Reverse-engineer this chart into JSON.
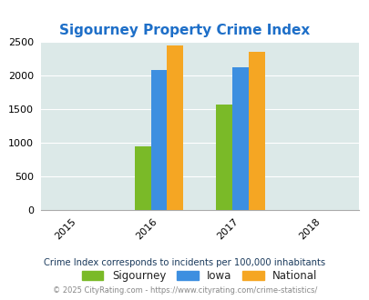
{
  "title": "Sigourney Property Crime Index",
  "title_color": "#1e6fc8",
  "years": [
    2015,
    2016,
    2017,
    2018
  ],
  "bar_years": [
    2016,
    2017
  ],
  "sigourney": [
    950,
    1570
  ],
  "iowa": [
    2080,
    2120
  ],
  "national": [
    2450,
    2360
  ],
  "sigourney_color": "#7aba28",
  "iowa_color": "#3d8fe0",
  "national_color": "#f5a623",
  "ylim": [
    0,
    2500
  ],
  "yticks": [
    0,
    500,
    1000,
    1500,
    2000,
    2500
  ],
  "bg_color": "#dce9e8",
  "fig_bg": "#ffffff",
  "legend_labels": [
    "Sigourney",
    "Iowa",
    "National"
  ],
  "footnote1": "Crime Index corresponds to incidents per 100,000 inhabitants",
  "footnote2": "© 2025 CityRating.com - https://www.cityrating.com/crime-statistics/",
  "bar_width": 0.2,
  "xlim": [
    2014.55,
    2018.45
  ]
}
